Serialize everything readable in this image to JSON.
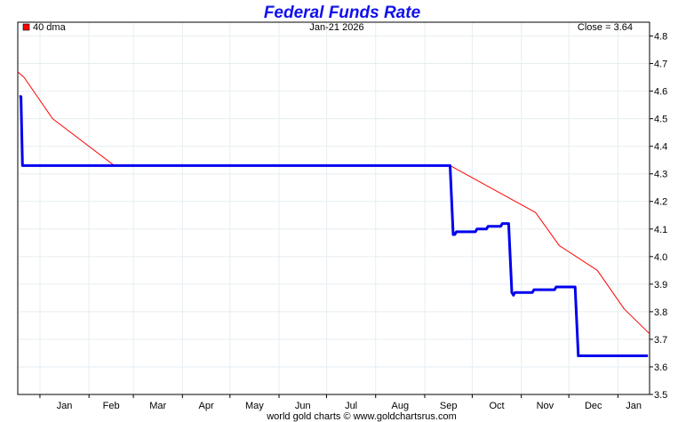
{
  "chart_data": {
    "type": "line",
    "title": "Federal Funds Rate",
    "date_label": "Jan-21  2026",
    "close_label": "Close = 3.64",
    "legend": [
      {
        "label": "40 dma",
        "color": "#ff0000"
      }
    ],
    "footer": "world gold charts © www.goldchartsrus.com",
    "x_ticks": [
      "Jan",
      "Feb",
      "Mar",
      "Apr",
      "May",
      "Jun",
      "Jul",
      "Aug",
      "Sep",
      "Oct",
      "Nov",
      "Dec",
      "Jan"
    ],
    "x_tick_days": [
      0,
      31,
      59,
      90,
      120,
      151,
      181,
      212,
      243,
      273,
      304,
      334,
      365
    ],
    "xlim": [
      -14,
      385
    ],
    "ylim": [
      3.5,
      4.85
    ],
    "y_ticks": [
      3.5,
      3.6,
      3.7,
      3.8,
      3.9,
      4.0,
      4.1,
      4.2,
      4.3,
      4.4,
      4.5,
      4.6,
      4.7,
      4.8
    ],
    "x_unit": "days since Jan 1 2025",
    "series": [
      {
        "name": "Federal Funds Rate",
        "color": "#0000ee",
        "points": [
          [
            -13,
            4.58
          ],
          [
            -12,
            4.58
          ],
          [
            -11,
            4.33
          ],
          [
            259,
            4.33
          ],
          [
            261,
            4.08
          ],
          [
            262,
            4.08
          ],
          [
            263,
            4.09
          ],
          [
            275,
            4.09
          ],
          [
            276,
            4.1
          ],
          [
            282,
            4.1
          ],
          [
            283,
            4.11
          ],
          [
            291,
            4.11
          ],
          [
            292,
            4.12
          ],
          [
            296,
            4.12
          ],
          [
            298,
            3.87
          ],
          [
            299,
            3.86
          ],
          [
            300,
            3.87
          ],
          [
            311,
            3.87
          ],
          [
            312,
            3.88
          ],
          [
            325,
            3.88
          ],
          [
            326,
            3.89
          ],
          [
            338,
            3.89
          ],
          [
            340,
            3.64
          ],
          [
            384,
            3.64
          ]
        ]
      },
      {
        "name": "40 dma",
        "color": "#ff0000",
        "points": [
          [
            -14,
            4.67
          ],
          [
            -10,
            4.65
          ],
          [
            8,
            4.5
          ],
          [
            47,
            4.33
          ],
          [
            259,
            4.33
          ],
          [
            313,
            4.16
          ],
          [
            328,
            4.04
          ],
          [
            352,
            3.95
          ],
          [
            369,
            3.81
          ],
          [
            385,
            3.72
          ]
        ]
      }
    ]
  }
}
